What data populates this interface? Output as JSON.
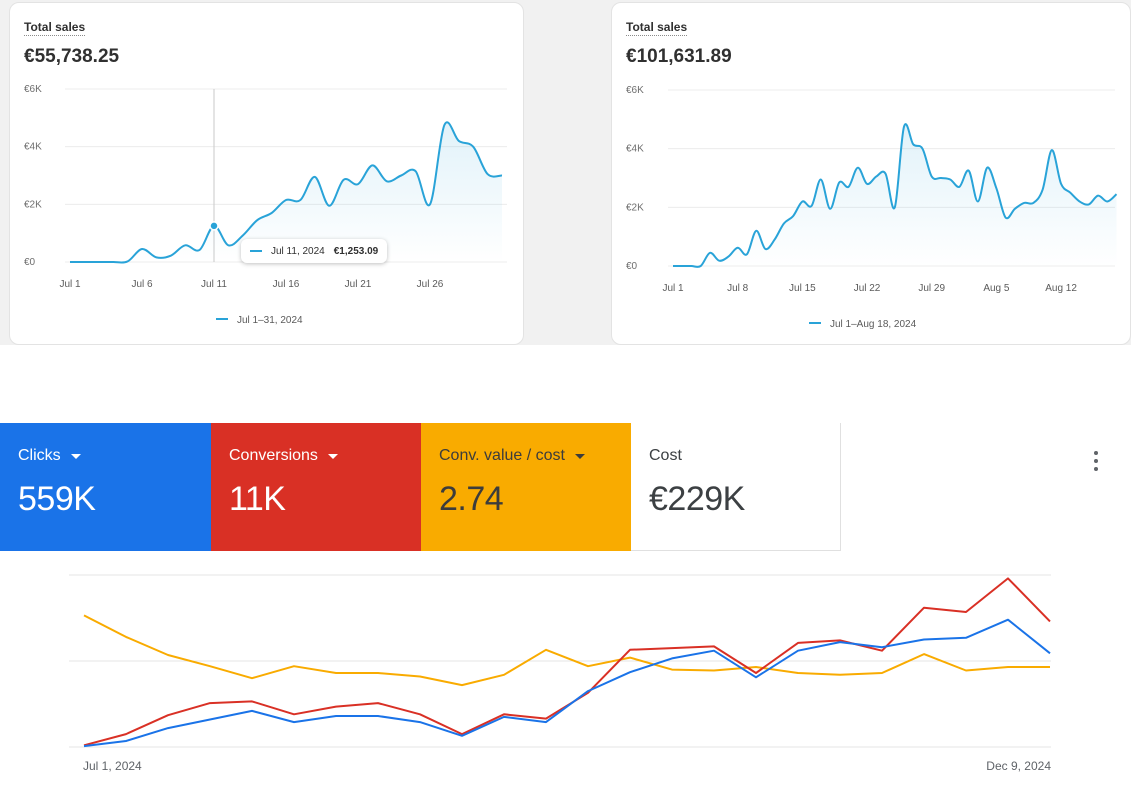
{
  "card1": {
    "title": "Total sales",
    "value": "€55,738.25",
    "tooltip": {
      "date": "Jul 11, 2024",
      "value": "€1,253.09"
    },
    "legend": "Jul 1–31, 2024",
    "accent": "#29a3d8"
  },
  "card2": {
    "title": "Total sales",
    "value": "€101,631.89",
    "legend": "Jul 1–Aug 18, 2024",
    "accent": "#29a3d8"
  },
  "ads": {
    "tiles": [
      {
        "label": "Clicks",
        "value": "559K",
        "color": "#1a73e8"
      },
      {
        "label": "Conversions",
        "value": "11K",
        "color": "#d93025"
      },
      {
        "label": "Conv. value / cost",
        "value": "2.74",
        "color": "#f9ab00"
      },
      {
        "label": "Cost",
        "value": "€229K",
        "color": "#ffffff"
      }
    ],
    "start_label": "Jul 1, 2024",
    "end_label": "Dec 9, 2024",
    "more_icon": "more-vert-icon"
  },
  "chart_data": [
    {
      "type": "area",
      "title": "Total sales",
      "yticks": [
        "€0",
        "€2K",
        "€4K",
        "€6K"
      ],
      "ylim": [
        0,
        6000
      ],
      "xticks": [
        "Jul 1",
        "Jul 6",
        "Jul 11",
        "Jul 16",
        "Jul 21",
        "Jul 26"
      ],
      "x": [
        "Jul 1",
        "Jul 2",
        "Jul 3",
        "Jul 4",
        "Jul 5",
        "Jul 6",
        "Jul 7",
        "Jul 8",
        "Jul 9",
        "Jul 10",
        "Jul 11",
        "Jul 12",
        "Jul 13",
        "Jul 14",
        "Jul 15",
        "Jul 16",
        "Jul 17",
        "Jul 18",
        "Jul 19",
        "Jul 20",
        "Jul 21",
        "Jul 22",
        "Jul 23",
        "Jul 24",
        "Jul 25",
        "Jul 26",
        "Jul 27",
        "Jul 28",
        "Jul 29",
        "Jul 30",
        "Jul 31"
      ],
      "series": [
        {
          "name": "Jul 1–31, 2024",
          "values": [
            0,
            0,
            0,
            0,
            20,
            450,
            160,
            220,
            580,
            420,
            1253,
            580,
            920,
            1450,
            1700,
            2150,
            2150,
            2950,
            1950,
            2850,
            2700,
            3350,
            2800,
            3000,
            3150,
            2000,
            4750,
            4200,
            4000,
            3050,
            3000
          ]
        }
      ],
      "highlight": {
        "x": "Jul 11",
        "value": 1253.09
      },
      "legend": "bottom-center",
      "grid": true
    },
    {
      "type": "area",
      "title": "Total sales",
      "yticks": [
        "€0",
        "€2K",
        "€4K",
        "€6K"
      ],
      "ylim": [
        0,
        6000
      ],
      "xticks": [
        "Jul 1",
        "Jul 8",
        "Jul 15",
        "Jul 22",
        "Jul 29",
        "Aug 5",
        "Aug 12"
      ],
      "x": [
        "Jul 1",
        "Jul 2",
        "Jul 3",
        "Jul 4",
        "Jul 5",
        "Jul 6",
        "Jul 7",
        "Jul 8",
        "Jul 9",
        "Jul 10",
        "Jul 11",
        "Jul 12",
        "Jul 13",
        "Jul 14",
        "Jul 15",
        "Jul 16",
        "Jul 17",
        "Jul 18",
        "Jul 19",
        "Jul 20",
        "Jul 21",
        "Jul 22",
        "Jul 23",
        "Jul 24",
        "Jul 25",
        "Jul 26",
        "Jul 27",
        "Jul 28",
        "Jul 29",
        "Jul 30",
        "Jul 31",
        "Aug 1",
        "Aug 2",
        "Aug 3",
        "Aug 4",
        "Aug 5",
        "Aug 6",
        "Aug 7",
        "Aug 8",
        "Aug 9",
        "Aug 10",
        "Aug 11",
        "Aug 12",
        "Aug 13",
        "Aug 14",
        "Aug 15",
        "Aug 16",
        "Aug 17",
        "Aug 18"
      ],
      "series": [
        {
          "name": "Jul 1–Aug 18, 2024",
          "values": [
            0,
            0,
            0,
            0,
            450,
            180,
            320,
            620,
            400,
            1200,
            580,
            900,
            1450,
            1700,
            2200,
            2050,
            2950,
            1950,
            2850,
            2700,
            3350,
            2800,
            3050,
            3150,
            2000,
            4750,
            4150,
            4000,
            3050,
            3000,
            2950,
            2700,
            3250,
            2200,
            3350,
            2650,
            1650,
            1950,
            2150,
            2150,
            2600,
            3950,
            2800,
            2500,
            2200,
            2100,
            2400,
            2200,
            2450
          ]
        }
      ],
      "legend": "bottom-center",
      "grid": true
    },
    {
      "type": "line",
      "x_start": "Jul 1, 2024",
      "x_end": "Dec 9, 2024",
      "series": [
        {
          "name": "Clicks",
          "color": "#1a73e8",
          "values": [
            1,
            7,
            22,
            32,
            42,
            29,
            36,
            36,
            29,
            13,
            35,
            29,
            65,
            87,
            103,
            112,
            81,
            112,
            122,
            116,
            125,
            127,
            148,
            109
          ]
        },
        {
          "name": "Conversions",
          "color": "#d93025",
          "values": [
            2,
            15,
            37,
            51,
            53,
            38,
            47,
            51,
            38,
            15,
            38,
            33,
            63,
            113,
            115,
            117,
            86,
            121,
            124,
            112,
            162,
            157,
            196,
            146
          ]
        },
        {
          "name": "Conv. value / cost",
          "color": "#f9ab00",
          "values": [
            153,
            128,
            107,
            94,
            80,
            94,
            86,
            86,
            82,
            72,
            84,
            113,
            94,
            104,
            90,
            89,
            93,
            86,
            84,
            86,
            108,
            89,
            93,
            93
          ]
        }
      ],
      "grid": true
    }
  ]
}
